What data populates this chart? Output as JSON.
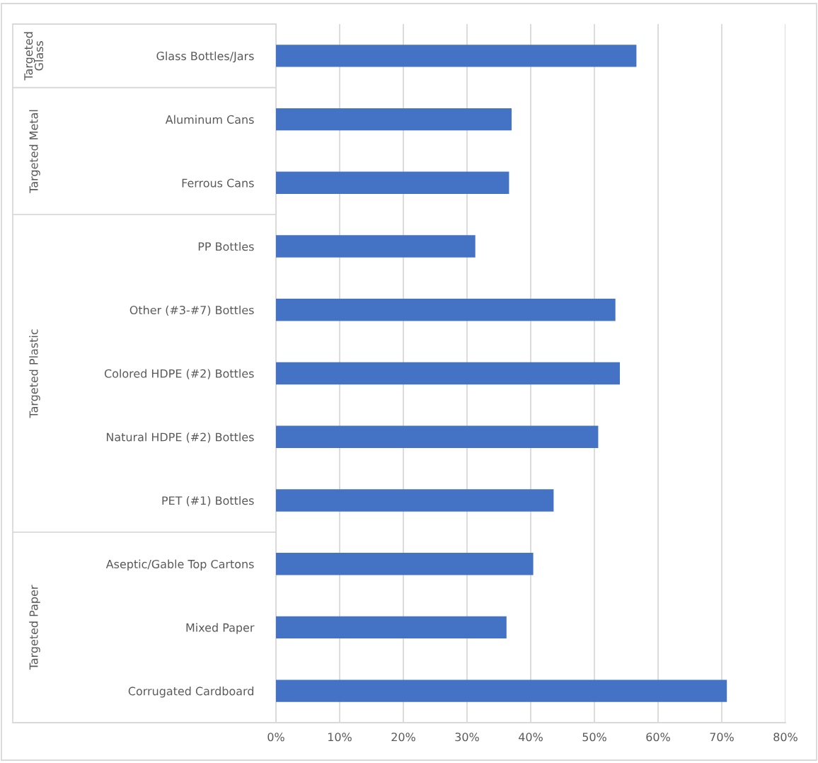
{
  "chart_data": {
    "type": "bar",
    "orientation": "horizontal",
    "categories": [
      "Glass Bottles/Jars",
      "Aluminum Cans",
      "Ferrous Cans",
      "PP Bottles",
      "Other (#3-#7) Bottles",
      "Colored HDPE (#2) Bottles",
      "Natural HDPE (#2) Bottles",
      "PET (#1) Bottles",
      "Aseptic/Gable Top Cartons",
      "Mixed Paper",
      "Corrugated Cardboard"
    ],
    "values": [
      56.6,
      37.0,
      36.6,
      31.3,
      53.3,
      54.0,
      50.6,
      43.6,
      40.4,
      36.2,
      70.8
    ],
    "color": "#4472c4",
    "xlim": [
      0,
      80
    ],
    "xticks": [
      {
        "value": 0,
        "label": "0%"
      },
      {
        "value": 10,
        "label": "10%"
      },
      {
        "value": 20,
        "label": "20%"
      },
      {
        "value": 30,
        "label": "30%"
      },
      {
        "value": 40,
        "label": "40%"
      },
      {
        "value": 50,
        "label": "50%"
      },
      {
        "value": 60,
        "label": "60%"
      },
      {
        "value": 70,
        "label": "70%"
      },
      {
        "value": 80,
        "label": "80%"
      }
    ],
    "grid": "x",
    "annotations": [
      "Targeted Glass",
      "Targeted Metal",
      "Targeted Plastic",
      "Targeted Paper"
    ]
  }
}
